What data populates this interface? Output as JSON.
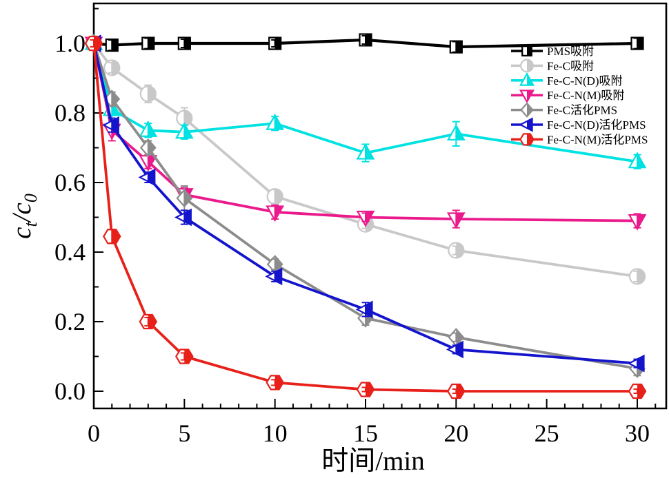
{
  "figure": {
    "background": "#ffffff",
    "border_color": "#000000"
  },
  "chart_data": {
    "type": "line",
    "title": "",
    "xlabel": "时间/min",
    "ylabel": "c_t/c_0",
    "x": [
      0,
      1,
      3,
      5,
      10,
      15,
      20,
      30
    ],
    "xticks": [
      0,
      5,
      10,
      15,
      20,
      25,
      30
    ],
    "yticks": [
      0.0,
      0.2,
      0.4,
      0.6,
      0.8,
      1.0
    ],
    "x_minor_step": 1,
    "y_minor_step": 0.1,
    "xlim": [
      0,
      31.6
    ],
    "ylim": [
      -0.05,
      1.11
    ],
    "grid": false,
    "legend_position": "upper-right",
    "error_bars": true,
    "series": [
      {
        "name": "PMS吸附",
        "id": "pms-adsorption",
        "color": "#000000",
        "marker": "square",
        "values": [
          1.0,
          0.995,
          1.0,
          1.0,
          1.0,
          1.01,
          0.99,
          1.0
        ],
        "errors": [
          0.012,
          0.015,
          0.015,
          0.012,
          0.01,
          0.012,
          0.015,
          0.015
        ]
      },
      {
        "name": "Fe-C吸附",
        "id": "fe-c-adsorption",
        "color": "#C8C8C8",
        "marker": "circle",
        "values": [
          1.0,
          0.93,
          0.855,
          0.785,
          0.56,
          0.48,
          0.405,
          0.33
        ],
        "errors": [
          0.01,
          0.015,
          0.025,
          0.03,
          0.02,
          0.012,
          0.012,
          0.015
        ]
      },
      {
        "name": "Fe-C-N(D)吸附",
        "id": "fe-c-n-d-adsorption",
        "color": "#00E1E1",
        "marker": "triangle-up",
        "values": [
          1.0,
          0.81,
          0.75,
          0.745,
          0.77,
          0.685,
          0.74,
          0.66
        ],
        "errors": [
          0.015,
          0.035,
          0.02,
          0.02,
          0.02,
          0.025,
          0.035,
          0.02
        ]
      },
      {
        "name": "Fe-C-N(M)吸附",
        "id": "fe-c-n-m-adsorption",
        "color": "#EB1A8C",
        "marker": "triangle-down",
        "values": [
          1.0,
          0.75,
          0.66,
          0.565,
          0.515,
          0.5,
          0.495,
          0.49
        ],
        "errors": [
          0.01,
          0.03,
          0.02,
          0.02,
          0.02,
          0.012,
          0.025,
          0.02
        ]
      },
      {
        "name": "Fe-C活化PMS",
        "id": "fe-c-activated-pms",
        "color": "#8C8C8C",
        "marker": "diamond",
        "values": [
          1.0,
          0.84,
          0.7,
          0.555,
          0.365,
          0.21,
          0.155,
          0.065
        ],
        "errors": [
          0.01,
          0.02,
          0.02,
          0.035,
          0.015,
          0.02,
          0.012,
          0.02
        ]
      },
      {
        "name": "Fe-C-N(D)活化PMS",
        "id": "fe-c-n-d-activated-pms",
        "color": "#1414CC",
        "marker": "triangle-left",
        "values": [
          1.0,
          0.765,
          0.615,
          0.5,
          0.33,
          0.235,
          0.12,
          0.08
        ],
        "errors": [
          0.01,
          0.02,
          0.015,
          0.02,
          0.015,
          0.02,
          0.012,
          0.012
        ]
      },
      {
        "name": "Fe-C-N(M)活化PMS",
        "id": "fe-c-n-m-activated-pms",
        "color": "#E8201A",
        "marker": "hexagon",
        "values": [
          1.0,
          0.445,
          0.2,
          0.1,
          0.025,
          0.005,
          0.0,
          0.0
        ],
        "errors": [
          0.01,
          0.02,
          0.012,
          0.01,
          0.008,
          0.006,
          0.006,
          0.006
        ]
      }
    ]
  }
}
